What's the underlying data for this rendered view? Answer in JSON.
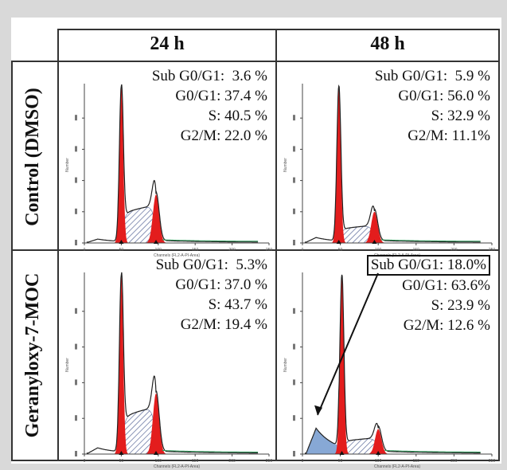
{
  "columns": [
    "24 h",
    "48 h"
  ],
  "rows": [
    "Control (DMSO)",
    "Geranyloxy-7-MOC"
  ],
  "axis": {
    "xlabel": "Channels (FL2-A-PI-Area)",
    "ylabel": "Number"
  },
  "colors": {
    "g1_fill": "#e31d1d",
    "s_hatch": "#5a6a9a",
    "subg1_fill": "#7a9fd0",
    "outline": "#222222",
    "box_border": "#111111"
  },
  "panels": [
    {
      "row": 0,
      "col": 0,
      "stats": [
        {
          "label": "Sub G0/G1:",
          "value": "3.6 %"
        },
        {
          "label": "G0/G1:",
          "value": "37.4 %"
        },
        {
          "label": "S:",
          "value": "40.5 %"
        },
        {
          "label": "G2/M:",
          "value": "22.0 %"
        }
      ]
    },
    {
      "row": 0,
      "col": 1,
      "stats": [
        {
          "label": "Sub G0/G1:",
          "value": "5.9 %"
        },
        {
          "label": "G0/G1:",
          "value": "56.0 %"
        },
        {
          "label": "S:",
          "value": "32.9 %"
        },
        {
          "label": "G2/M:",
          "value": "11.1%"
        }
      ]
    },
    {
      "row": 1,
      "col": 0,
      "stats": [
        {
          "label": "Sub G0/G1:",
          "value": "5.3%"
        },
        {
          "label": "G0/G1:",
          "value": "37.0 %"
        },
        {
          "label": "S:",
          "value": "43.7 %"
        },
        {
          "label": "G2/M:",
          "value": "19.4 %"
        }
      ]
    },
    {
      "row": 1,
      "col": 1,
      "highlight": "Sub G0/G1: 18.0%",
      "stats": [
        {
          "label": "Sub G0/G1:",
          "value": "18.0%"
        },
        {
          "label": "G0/G1:",
          "value": "63.6%"
        },
        {
          "label": "S:",
          "value": "23.9 %"
        },
        {
          "label": "G2/M:",
          "value": "12.6 %"
        }
      ]
    }
  ],
  "chart_data": [
    {
      "type": "area",
      "panel": "Control (DMSO) 24 h",
      "xlabel": "Channels (FL2-A-PI-Area)",
      "ylabel": "Number",
      "xlim": [
        0,
        250
      ],
      "x_ticks": [
        0,
        50,
        100,
        150,
        200,
        250
      ],
      "series": [
        {
          "name": "Sub G0/G1",
          "value_percent": 3.6
        },
        {
          "name": "G0/G1",
          "value_percent": 37.4
        },
        {
          "name": "S",
          "value_percent": 40.5
        },
        {
          "name": "G2/M",
          "value_percent": 22.0
        }
      ],
      "peaks": {
        "g1_channel": 50,
        "g1_height": 1.0,
        "g2_channel": 97,
        "g2_height": 0.31,
        "s_plateau": 0.22,
        "subg1_height": 0.02
      }
    },
    {
      "type": "area",
      "panel": "Control (DMSO) 48 h",
      "xlabel": "Channels (FL2-A-PI-Area)",
      "ylabel": "Number",
      "xlim": [
        0,
        250
      ],
      "x_ticks": [
        0,
        50,
        100,
        150,
        200,
        250
      ],
      "series": [
        {
          "name": "Sub G0/G1",
          "value_percent": 5.9
        },
        {
          "name": "G0/G1",
          "value_percent": 56.0
        },
        {
          "name": "S",
          "value_percent": 32.9
        },
        {
          "name": "G2/M",
          "value_percent": 11.1
        }
      ],
      "peaks": {
        "g1_channel": 48,
        "g1_height": 1.0,
        "g2_channel": 95,
        "g2_height": 0.2,
        "s_plateau": 0.1,
        "subg1_height": 0.03
      }
    },
    {
      "type": "area",
      "panel": "Geranyloxy-7-MOC 24 h",
      "xlabel": "Channels (FL2-A-PI-Area)",
      "ylabel": "Number",
      "xlim": [
        0,
        250
      ],
      "x_ticks": [
        0,
        50,
        100,
        150,
        200,
        250
      ],
      "series": [
        {
          "name": "Sub G0/G1",
          "value_percent": 5.3
        },
        {
          "name": "G0/G1",
          "value_percent": 37.0
        },
        {
          "name": "S",
          "value_percent": 43.7
        },
        {
          "name": "G2/M",
          "value_percent": 19.4
        }
      ],
      "peaks": {
        "g1_channel": 50,
        "g1_height": 1.0,
        "g2_channel": 97,
        "g2_height": 0.34,
        "s_plateau": 0.24,
        "subg1_height": 0.03
      }
    },
    {
      "type": "area",
      "panel": "Geranyloxy-7-MOC 48 h",
      "xlabel": "Channels (FL2-A-PI-Area)",
      "ylabel": "Number",
      "xlim": [
        0,
        250
      ],
      "x_ticks": [
        0,
        50,
        100,
        150,
        200,
        250
      ],
      "series": [
        {
          "name": "Sub G0/G1",
          "value_percent": 18.0
        },
        {
          "name": "G0/G1",
          "value_percent": 63.6
        },
        {
          "name": "S",
          "value_percent": 23.9
        },
        {
          "name": "G2/M",
          "value_percent": 12.6
        }
      ],
      "peaks": {
        "g1_channel": 52,
        "g1_height": 1.0,
        "g2_channel": 100,
        "g2_height": 0.14,
        "s_plateau": 0.08,
        "subg1_height": 0.14
      }
    }
  ]
}
